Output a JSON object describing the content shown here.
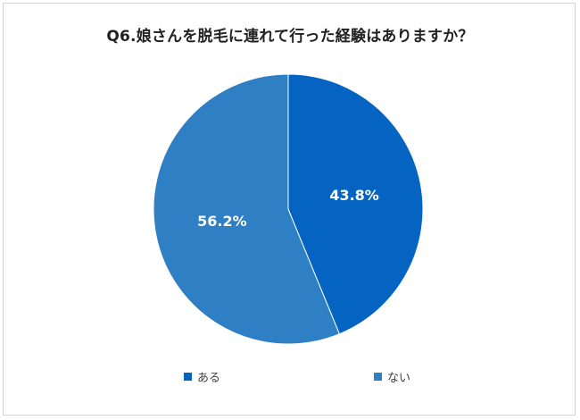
{
  "chart_data": {
    "type": "pie",
    "title": "Q6.娘さんを脱毛に連れて行った経験はありますか？",
    "slices": [
      {
        "label": "ある",
        "value": 43.8,
        "display": "43.8%",
        "color": "#0563c1"
      },
      {
        "label": "ない",
        "value": 56.2,
        "display": "56.2%",
        "color": "#2e7fc4"
      }
    ],
    "legend_position": "bottom"
  },
  "legend": [
    {
      "label": "ある",
      "color": "#0563c1"
    },
    {
      "label": "ない",
      "color": "#2e7fc4"
    }
  ]
}
